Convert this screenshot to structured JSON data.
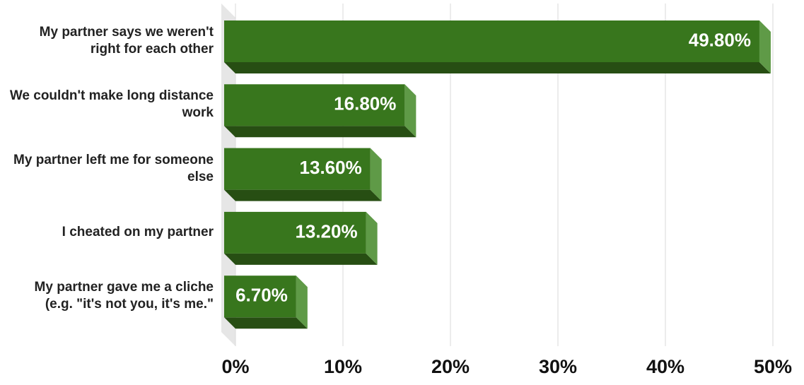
{
  "chart_data": {
    "type": "bar3d-horizontal",
    "categories": [
      "My partner says we weren't right for each other",
      "We couldn't make long distance work",
      "My partner left me for someone else",
      "I cheated on my partner",
      "My partner gave me a cliche (e.g. \"it's not you, it's me.\""
    ],
    "values": [
      49.8,
      16.8,
      13.6,
      13.2,
      6.7
    ],
    "value_labels": [
      "49.80%",
      "16.80%",
      "13.60%",
      "13.20%",
      "6.70%"
    ],
    "color": "#38761d",
    "xlim": [
      0,
      50
    ],
    "xticks": [
      {
        "value": 0,
        "label": "0%"
      },
      {
        "value": 10,
        "label": "10%"
      },
      {
        "value": 20,
        "label": "20%"
      },
      {
        "value": 30,
        "label": "30%"
      },
      {
        "value": 40,
        "label": "40%"
      },
      {
        "value": 50,
        "label": "50%"
      }
    ],
    "grid": true
  }
}
